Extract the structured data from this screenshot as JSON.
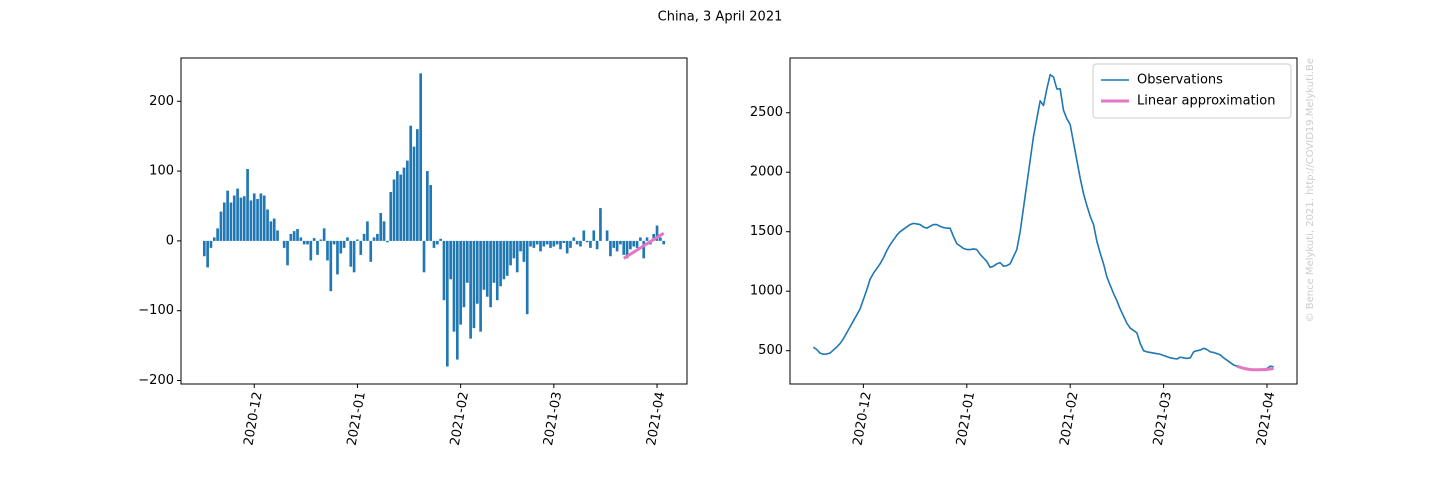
{
  "title": "China, 3 April 2021",
  "watermark": "© Bence Melykuti, 2021. http://COVID19.Melykuti.Be",
  "chart_data": [
    {
      "type": "bar",
      "categories": [
        null,
        null,
        null,
        null,
        null,
        null,
        null,
        null,
        null,
        null,
        null,
        null,
        null,
        null,
        null,
        "2020-12",
        null,
        null,
        null,
        null,
        null,
        null,
        null,
        null,
        null,
        null,
        null,
        null,
        null,
        null,
        null,
        null,
        null,
        null,
        null,
        null,
        null,
        null,
        null,
        null,
        null,
        null,
        null,
        null,
        null,
        null,
        "2021-01",
        null,
        null,
        null,
        null,
        null,
        null,
        null,
        null,
        null,
        null,
        null,
        null,
        null,
        null,
        null,
        null,
        null,
        null,
        null,
        null,
        null,
        null,
        null,
        null,
        null,
        null,
        null,
        null,
        null,
        null,
        "2021-02",
        null,
        null,
        null,
        null,
        null,
        null,
        null,
        null,
        null,
        null,
        null,
        null,
        null,
        null,
        null,
        null,
        null,
        null,
        null,
        null,
        null,
        null,
        null,
        null,
        null,
        null,
        null,
        "2021-03",
        null,
        null,
        null,
        null,
        null,
        null,
        null,
        null,
        null,
        null,
        null,
        null,
        null,
        null,
        null,
        null,
        null,
        null,
        null,
        null,
        null,
        null,
        null,
        null,
        null,
        null,
        null,
        null,
        null,
        null,
        "2021-04",
        null,
        null
      ],
      "series": [
        {
          "type": "bar",
          "color": "#1f77b4",
          "values": [
            -22,
            -38,
            -10,
            5,
            18,
            42,
            55,
            72,
            55,
            65,
            75,
            62,
            64,
            103,
            58,
            68,
            60,
            68,
            65,
            45,
            28,
            32,
            15,
            0,
            -10,
            -35,
            10,
            14,
            17,
            5,
            -5,
            -5,
            -28,
            4,
            -20,
            2,
            18,
            -28,
            -72,
            -5,
            -48,
            -18,
            -10,
            5,
            -37,
            -45,
            2,
            -20,
            10,
            28,
            -30,
            5,
            10,
            40,
            28,
            -2,
            70,
            88,
            100,
            95,
            105,
            115,
            165,
            135,
            160,
            240,
            -45,
            100,
            80,
            -10,
            -5,
            3,
            -85,
            -180,
            -55,
            -130,
            -170,
            -120,
            -95,
            -60,
            -140,
            -125,
            -90,
            -130,
            -70,
            -80,
            -95,
            -60,
            -85,
            -65,
            -55,
            -50,
            -35,
            -25,
            -45,
            -15,
            -30,
            -105,
            -8,
            -10,
            -5,
            -15,
            -8,
            -5,
            -10,
            -8,
            -5,
            -12,
            -3,
            -18,
            -10,
            5,
            -5,
            -8,
            15,
            -2,
            -10,
            15,
            -12,
            47,
            0,
            15,
            -22,
            -10,
            -15,
            -5,
            -20,
            -25,
            -12,
            -8,
            -10,
            5,
            -25,
            5,
            -5,
            10,
            22,
            5,
            -5
          ]
        },
        {
          "type": "line",
          "color": "#e377c2",
          "values": [
            null,
            null,
            null,
            null,
            null,
            null,
            null,
            null,
            null,
            null,
            null,
            null,
            null,
            null,
            null,
            null,
            null,
            null,
            null,
            null,
            null,
            null,
            null,
            null,
            null,
            null,
            null,
            null,
            null,
            null,
            null,
            null,
            null,
            null,
            null,
            null,
            null,
            null,
            null,
            null,
            null,
            null,
            null,
            null,
            null,
            null,
            null,
            null,
            null,
            null,
            null,
            null,
            null,
            null,
            null,
            null,
            null,
            null,
            null,
            null,
            null,
            null,
            null,
            null,
            null,
            null,
            null,
            null,
            null,
            null,
            null,
            null,
            null,
            null,
            null,
            null,
            null,
            null,
            null,
            null,
            null,
            null,
            null,
            null,
            null,
            null,
            null,
            null,
            null,
            null,
            null,
            null,
            null,
            null,
            null,
            null,
            null,
            null,
            null,
            null,
            null,
            null,
            null,
            null,
            null,
            null,
            null,
            null,
            null,
            null,
            null,
            null,
            null,
            null,
            null,
            null,
            null,
            null,
            null,
            null,
            null,
            null,
            null,
            null,
            null,
            null,
            -25,
            -22,
            -19,
            -16,
            -13,
            -10,
            -7,
            -4,
            -1,
            2,
            5,
            8,
            11
          ]
        }
      ],
      "ylim": [
        -205,
        262
      ],
      "yticks": [
        {
          "value": -200,
          "label": "−200"
        },
        {
          "value": -100,
          "label": "−100"
        },
        0,
        100,
        200
      ]
    },
    {
      "type": "line",
      "categories": [
        null,
        null,
        null,
        null,
        null,
        null,
        null,
        null,
        null,
        null,
        null,
        null,
        null,
        null,
        null,
        "2020-12",
        null,
        null,
        null,
        null,
        null,
        null,
        null,
        null,
        null,
        null,
        null,
        null,
        null,
        null,
        null,
        null,
        null,
        null,
        null,
        null,
        null,
        null,
        null,
        null,
        null,
        null,
        null,
        null,
        null,
        null,
        "2021-01",
        null,
        null,
        null,
        null,
        null,
        null,
        null,
        null,
        null,
        null,
        null,
        null,
        null,
        null,
        null,
        null,
        null,
        null,
        null,
        null,
        null,
        null,
        null,
        null,
        null,
        null,
        null,
        null,
        null,
        null,
        "2021-02",
        null,
        null,
        null,
        null,
        null,
        null,
        null,
        null,
        null,
        null,
        null,
        null,
        null,
        null,
        null,
        null,
        null,
        null,
        null,
        null,
        null,
        null,
        null,
        null,
        null,
        null,
        null,
        "2021-03",
        null,
        null,
        null,
        null,
        null,
        null,
        null,
        null,
        null,
        null,
        null,
        null,
        null,
        null,
        null,
        null,
        null,
        null,
        null,
        null,
        null,
        null,
        null,
        null,
        null,
        null,
        null,
        null,
        null,
        null,
        "2021-04",
        null,
        null
      ],
      "series": [
        {
          "name": "Observations",
          "color": "#1f77b4",
          "values": [
            530,
            510,
            480,
            470,
            472,
            480,
            505,
            530,
            560,
            600,
            650,
            700,
            750,
            800,
            850,
            930,
            1010,
            1100,
            1150,
            1190,
            1230,
            1280,
            1340,
            1390,
            1430,
            1470,
            1500,
            1520,
            1540,
            1560,
            1570,
            1565,
            1560,
            1540,
            1530,
            1545,
            1560,
            1560,
            1545,
            1535,
            1530,
            1530,
            1460,
            1400,
            1380,
            1360,
            1350,
            1350,
            1355,
            1350,
            1310,
            1280,
            1250,
            1200,
            1210,
            1230,
            1240,
            1210,
            1215,
            1230,
            1290,
            1350,
            1500,
            1700,
            1900,
            2100,
            2300,
            2450,
            2600,
            2560,
            2700,
            2820,
            2800,
            2700,
            2700,
            2520,
            2450,
            2400,
            2250,
            2100,
            1950,
            1820,
            1720,
            1630,
            1560,
            1420,
            1320,
            1230,
            1120,
            1050,
            980,
            920,
            850,
            790,
            730,
            690,
            670,
            650,
            560,
            500,
            490,
            485,
            480,
            475,
            470,
            460,
            450,
            440,
            435,
            430,
            445,
            440,
            435,
            440,
            490,
            500,
            505,
            520,
            510,
            490,
            485,
            475,
            465,
            440,
            420,
            400,
            380,
            370,
            365,
            350,
            340,
            340,
            335,
            340,
            345,
            345,
            350,
            370,
            365
          ]
        },
        {
          "name": "Linear approximation",
          "color": "#e377c2",
          "values": [
            null,
            null,
            null,
            null,
            null,
            null,
            null,
            null,
            null,
            null,
            null,
            null,
            null,
            null,
            null,
            null,
            null,
            null,
            null,
            null,
            null,
            null,
            null,
            null,
            null,
            null,
            null,
            null,
            null,
            null,
            null,
            null,
            null,
            null,
            null,
            null,
            null,
            null,
            null,
            null,
            null,
            null,
            null,
            null,
            null,
            null,
            null,
            null,
            null,
            null,
            null,
            null,
            null,
            null,
            null,
            null,
            null,
            null,
            null,
            null,
            null,
            null,
            null,
            null,
            null,
            null,
            null,
            null,
            null,
            null,
            null,
            null,
            null,
            null,
            null,
            null,
            null,
            null,
            null,
            null,
            null,
            null,
            null,
            null,
            null,
            null,
            null,
            null,
            null,
            null,
            null,
            null,
            null,
            null,
            null,
            null,
            null,
            null,
            null,
            null,
            null,
            null,
            null,
            null,
            null,
            null,
            null,
            null,
            null,
            null,
            null,
            null,
            null,
            null,
            null,
            null,
            null,
            null,
            null,
            null,
            null,
            null,
            null,
            null,
            null,
            null,
            null,
            370,
            360,
            352,
            346,
            342,
            340,
            340,
            340,
            341,
            343,
            346,
            350
          ]
        }
      ],
      "ylim": [
        220,
        2960
      ],
      "yticks": [
        500,
        1000,
        1500,
        2000,
        2500
      ],
      "legend": "upper right"
    }
  ]
}
